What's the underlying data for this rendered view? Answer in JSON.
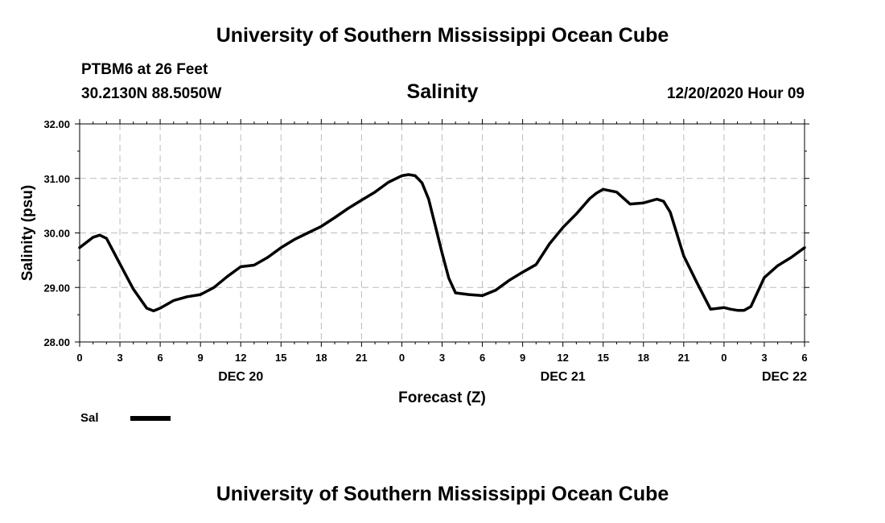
{
  "header": {
    "title": "University of Southern Mississippi Ocean Cube",
    "station": "PTBM6 at 26 Feet",
    "coordinates": "30.2130N 88.5050W",
    "timestamp": "12/20/2020 Hour 09"
  },
  "footer": {
    "title": "University of Southern Mississippi Ocean Cube"
  },
  "chart_data": {
    "type": "line",
    "title": "Salinity",
    "xlabel": "Forecast (Z)",
    "ylabel": "Salinity (psu)",
    "ylim": [
      28,
      32
    ],
    "xlim": [
      0,
      54
    ],
    "x_unit": "hours from 00Z DEC 20",
    "y_ticks": [
      "28.00",
      "29.00",
      "30.00",
      "31.00",
      "32.00"
    ],
    "x_ticks": [
      "0",
      "3",
      "6",
      "9",
      "12",
      "15",
      "18",
      "21",
      "0",
      "3",
      "6",
      "9",
      "12",
      "15",
      "18",
      "21",
      "0",
      "3",
      "6"
    ],
    "date_labels": [
      {
        "label": "DEC 20",
        "at_hour": 12
      },
      {
        "label": "DEC 21",
        "at_hour": 36
      },
      {
        "label": "DEC 22",
        "at_hour": 52.5
      }
    ],
    "grid": true,
    "legend_position": "bottom-left",
    "series": [
      {
        "name": "Sal",
        "color": "#000000",
        "x": [
          0,
          1,
          1.5,
          2,
          3,
          4,
          5,
          5.5,
          6,
          7,
          8,
          9,
          10,
          11,
          12,
          13,
          14,
          15,
          16,
          17,
          18,
          19,
          20,
          21,
          22,
          23,
          24,
          24.5,
          25,
          25.5,
          26,
          27,
          27.5,
          28,
          29,
          30,
          31,
          32,
          33,
          34,
          35,
          36,
          37,
          38,
          38.5,
          39,
          40,
          41,
          42,
          43,
          43.5,
          44,
          45,
          46,
          47,
          48,
          48.5,
          49,
          49.5,
          50,
          51,
          52,
          53,
          54
        ],
        "y": [
          29.73,
          29.92,
          29.96,
          29.9,
          29.43,
          28.97,
          28.62,
          28.57,
          28.62,
          28.76,
          28.83,
          28.87,
          29.0,
          29.2,
          29.38,
          29.41,
          29.55,
          29.73,
          29.88,
          30.0,
          30.12,
          30.28,
          30.45,
          30.6,
          30.75,
          30.93,
          31.05,
          31.07,
          31.05,
          30.92,
          30.62,
          29.63,
          29.17,
          28.9,
          28.87,
          28.85,
          28.95,
          29.13,
          29.28,
          29.42,
          29.8,
          30.1,
          30.35,
          30.63,
          30.73,
          30.8,
          30.75,
          30.53,
          30.55,
          30.62,
          30.58,
          30.38,
          29.58,
          29.08,
          28.6,
          28.63,
          28.6,
          28.58,
          28.58,
          28.65,
          29.18,
          29.4,
          29.55,
          29.73
        ]
      }
    ]
  }
}
